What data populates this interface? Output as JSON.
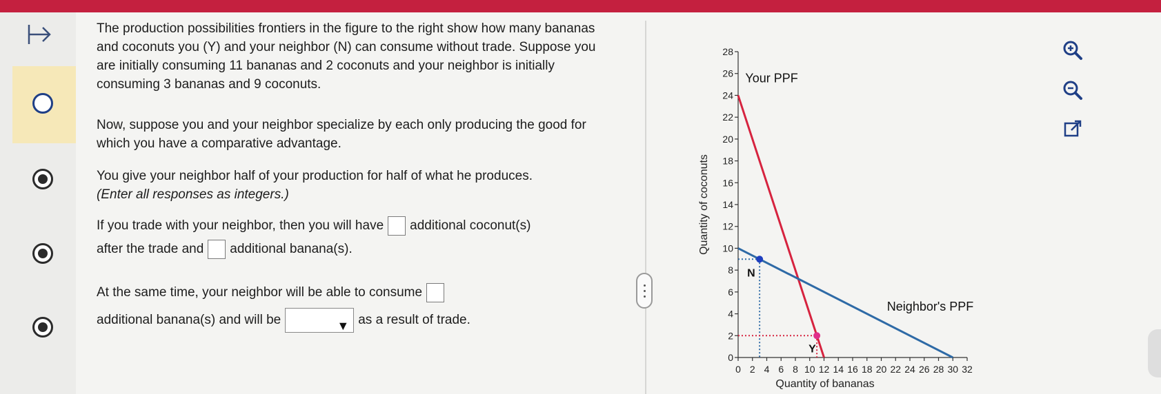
{
  "question": {
    "p1": "The production possibilities frontiers in the figure to the right show how many bananas and coconuts you (Y) and your neighbor (N) can consume without trade. Suppose you are initially consuming 11 bananas and 2 coconuts and your neighbor is initially consuming 3 bananas and 9 coconuts.",
    "p2": "Now, suppose you and your neighbor specialize by each only producing the good for which you have a comparative advantage.",
    "p3": "You give your neighbor half of your production for half of what he produces.",
    "p3_note": "(Enter all responses as integers.)",
    "p4_a": "If you trade with your neighbor, then you will have",
    "p4_b": "additional coconut(s)",
    "p4_c": "after the trade  and",
    "p4_d": "additional banana(s).",
    "p5_a": "At the same time, your neighbor will be able to consume",
    "p5_b": "additional banana(s) and will be",
    "p5_c": "as a result of trade.",
    "dropdown_value": ""
  },
  "graph": {
    "your_ppf_label": "Your PPF",
    "neighbor_ppf_label": "Neighbor's PPF",
    "n_label": "N",
    "y_label": "Y"
  },
  "icons": [
    "collapse-arrow-icon",
    "zoom-in-icon",
    "zoom-out-icon",
    "external-link-icon"
  ],
  "colors": {
    "topbar": "#c4203f",
    "your_ppf": "#d6233f",
    "neighbor_ppf": "#2e6aa6",
    "point_n": "#1f3fbf",
    "point_y": "#e0308a"
  },
  "chart_data": {
    "type": "line",
    "xlabel": "Quantity of bananas",
    "ylabel": "Quantity of coconuts",
    "xlim": [
      0,
      32
    ],
    "ylim": [
      0,
      28
    ],
    "xticks": [
      0,
      2,
      4,
      6,
      8,
      10,
      12,
      14,
      16,
      18,
      20,
      22,
      24,
      26,
      28,
      30,
      32
    ],
    "yticks": [
      0,
      2,
      4,
      6,
      8,
      10,
      12,
      14,
      16,
      18,
      20,
      22,
      24,
      26,
      28
    ],
    "series": [
      {
        "name": "Your PPF",
        "x": [
          0,
          12
        ],
        "y": [
          24,
          0
        ]
      },
      {
        "name": "Neighbor's PPF",
        "x": [
          0,
          30
        ],
        "y": [
          10,
          0
        ]
      }
    ],
    "points": [
      {
        "label": "N",
        "x": 3,
        "y": 9
      },
      {
        "label": "Y",
        "x": 11,
        "y": 2
      }
    ]
  }
}
